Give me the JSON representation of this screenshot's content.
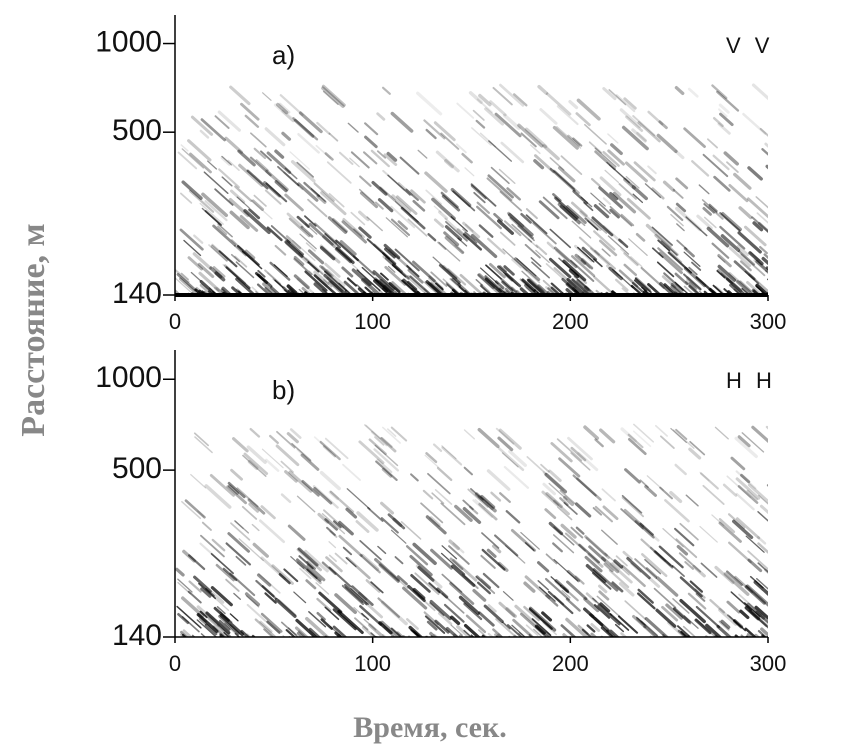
{
  "ylabel": "Расстояние, м",
  "xlabel": "Время, сек.",
  "chart_data": [
    {
      "type": "heatmap",
      "panel_label": "a)",
      "polarization": "V V",
      "xlim": [
        0,
        300
      ],
      "xticks": [
        0,
        100,
        200,
        300
      ],
      "ylim": [
        140,
        1250
      ],
      "yticks": [
        140,
        500,
        1000
      ],
      "yscale": "log",
      "color": "#000000"
    },
    {
      "type": "heatmap",
      "panel_label": "b)",
      "polarization": "H H",
      "xlim": [
        0,
        300
      ],
      "xticks": [
        0,
        100,
        200,
        300
      ],
      "ylim": [
        140,
        1250
      ],
      "yticks": [
        140,
        500,
        1000
      ],
      "yscale": "log",
      "color": "#000000"
    }
  ]
}
